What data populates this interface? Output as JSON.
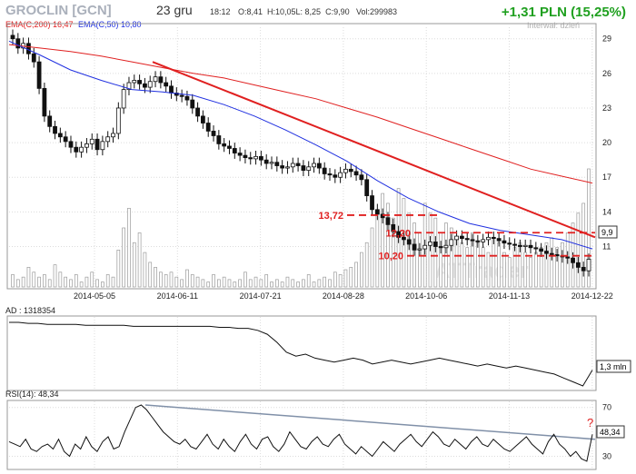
{
  "header": {
    "ticker": "GROCLIN [GCN]",
    "date": "23 gru",
    "time": "18:12",
    "ohlc": "O:8,41  H:10,05L: 8,25  C:9,90",
    "volume": "Vol:299983",
    "change": "+1,31 PLN (15,25%)",
    "interval": "Interwał: dzień",
    "ema200_label": "EMA(C,200) 16,47",
    "ema50_label": "EMA(C,50) 10,80",
    "watermark": "ATTrader"
  },
  "colors": {
    "ema200": "#e02020",
    "ema50": "#2030e0",
    "trend": "#e02020",
    "change": "#20a020",
    "volume": "#c8c8c8",
    "grid": "#d8d8d8",
    "rsi_trend": "#8090a8",
    "question": "#e02020"
  },
  "chart_data": [
    {
      "type": "candlestick",
      "title": "GROCLIN [GCN]",
      "x_tick_labels": [
        "2014-05-05",
        "2014-06-11",
        "2014-07-21",
        "2014-08-28",
        "2014-10-06",
        "2014-11-13",
        "2014-12-22"
      ],
      "y_tick_labels": [
        "29",
        "26",
        "23",
        "20",
        "17",
        "14",
        "11"
      ],
      "last_price_label": "9,9",
      "ylim": [
        7.5,
        30
      ],
      "grid": true,
      "series": [
        {
          "name": "EMA(C,200)",
          "values": [
            28.5,
            28.2,
            27.9,
            27.5,
            27.0,
            26.5,
            26.0,
            25.6,
            25.0,
            24.4,
            23.8,
            23.0,
            22.2,
            21.3,
            20.4,
            19.5,
            18.6,
            17.7,
            17.1,
            16.5
          ]
        },
        {
          "name": "EMA(C,50)",
          "values": [
            28.8,
            27.6,
            26.3,
            25.4,
            24.6,
            24.4,
            24.1,
            23.3,
            22.3,
            21.1,
            19.8,
            18.4,
            16.7,
            15.2,
            14.0,
            13.0,
            12.4,
            12.0,
            11.6,
            10.8
          ]
        }
      ],
      "price_close": [
        29.0,
        28.2,
        28.6,
        27.7,
        27.0,
        24.7,
        22.3,
        21.4,
        20.8,
        20.5,
        20.1,
        19.6,
        19.2,
        19.6,
        19.9,
        20.3,
        19.4,
        20.1,
        20.5,
        20.8,
        23.0,
        24.6,
        25.2,
        25.4,
        25.1,
        24.8,
        25.3,
        25.7,
        25.2,
        24.9,
        24.3,
        24.1,
        24.0,
        23.7,
        23.0,
        22.3,
        21.7,
        21.0,
        20.6,
        19.9,
        19.7,
        19.5,
        19.1,
        18.9,
        18.7,
        18.6,
        18.8,
        18.5,
        18.2,
        18.3,
        18.0,
        17.8,
        17.9,
        18.2,
        18.0,
        17.6,
        17.9,
        18.2,
        17.8,
        17.3,
        17.2,
        17.0,
        17.4,
        17.7,
        17.5,
        17.2,
        16.8,
        15.4,
        14.2,
        13.8,
        13.5,
        12.9,
        12.3,
        11.8,
        11.6,
        11.2,
        10.7,
        10.8,
        11.1,
        11.4,
        11.0,
        10.9,
        11.1,
        11.6,
        11.9,
        11.7,
        11.6,
        11.5,
        11.4,
        11.6,
        11.8,
        11.7,
        11.5,
        11.3,
        11.2,
        11.1,
        11.0,
        11.1,
        10.9,
        10.8,
        10.6,
        10.4,
        10.3,
        10.2,
        10.1,
        10.0,
        9.6,
        9.2,
        8.9,
        9.9
      ],
      "volume": [
        5,
        3,
        4,
        8,
        6,
        4,
        5,
        3,
        9,
        6,
        4,
        3,
        5,
        2,
        4,
        6,
        3,
        2,
        5,
        4,
        15,
        24,
        32,
        18,
        22,
        14,
        10,
        8,
        6,
        5,
        6,
        4,
        3,
        7,
        5,
        4,
        3,
        2,
        5,
        3,
        4,
        3,
        2,
        3,
        6,
        3,
        4,
        3,
        5,
        2,
        3,
        2,
        4,
        3,
        2,
        3,
        5,
        2,
        3,
        4,
        3,
        6,
        5,
        7,
        8,
        10,
        14,
        18,
        24,
        30,
        38,
        34,
        28,
        40,
        36,
        30,
        26,
        22,
        34,
        30,
        28,
        22,
        26,
        24,
        20,
        18,
        16,
        22,
        18,
        16,
        14,
        20,
        18,
        14,
        12,
        16,
        18,
        14,
        12,
        14,
        16,
        18,
        20,
        16,
        18,
        22,
        26,
        30,
        34,
        48
      ],
      "annotations": [
        {
          "text": "13,72",
          "value": 13.72
        },
        {
          "text": "12,20",
          "value": 12.2
        },
        {
          "text": "10,20",
          "value": 10.2
        }
      ],
      "trendline": {
        "start": 27.0,
        "end": 11.8
      }
    },
    {
      "type": "line",
      "title": "AD : 1318354",
      "last_value_label": "1,3 mln",
      "values": [
        82,
        82,
        81,
        81,
        80,
        80,
        80,
        80,
        79,
        79,
        79,
        79,
        79,
        78,
        78,
        78,
        78,
        78,
        78,
        78,
        78,
        78,
        77,
        77,
        76,
        76,
        74,
        70,
        62,
        52,
        48,
        50,
        46,
        44,
        42,
        44,
        46,
        44,
        40,
        42,
        44,
        42,
        40,
        42,
        44,
        46,
        44,
        42,
        40,
        38,
        40,
        38,
        36,
        38,
        36,
        34,
        32,
        30,
        26,
        22,
        18,
        34
      ]
    },
    {
      "type": "line",
      "title": "RSI(14): 48,34",
      "y_tick_labels": [
        "70",
        "30"
      ],
      "last_value_label": "48,34",
      "ylim": [
        20,
        75
      ],
      "question_mark": "?",
      "values": [
        42,
        40,
        38,
        44,
        36,
        34,
        38,
        40,
        36,
        44,
        34,
        30,
        40,
        36,
        46,
        38,
        34,
        42,
        46,
        36,
        38,
        50,
        60,
        70,
        72,
        68,
        62,
        56,
        50,
        46,
        42,
        40,
        44,
        38,
        36,
        42,
        48,
        40,
        36,
        44,
        38,
        34,
        42,
        48,
        40,
        36,
        44,
        46,
        38,
        34,
        40,
        50,
        44,
        38,
        36,
        42,
        46,
        40,
        38,
        44,
        48,
        40,
        36,
        32,
        38,
        34,
        30,
        36,
        42,
        38,
        34,
        40,
        44,
        48,
        42,
        38,
        44,
        50,
        46,
        40,
        38,
        44,
        40,
        36,
        42,
        46,
        40,
        38,
        44,
        40,
        36,
        34,
        38,
        42,
        46,
        40,
        36,
        32,
        42,
        48,
        40,
        36,
        30,
        34,
        28,
        26,
        48
      ]
    }
  ]
}
